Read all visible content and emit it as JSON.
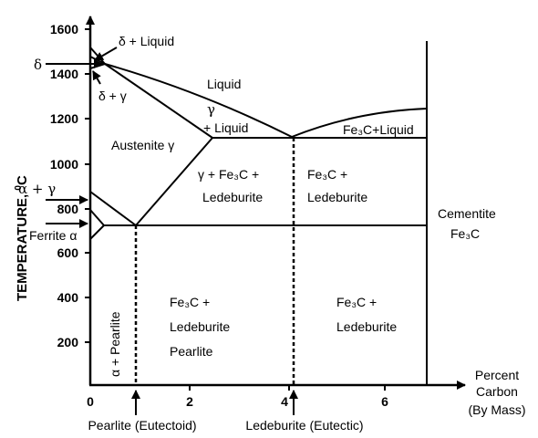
{
  "axes": {
    "y_label": "TEMPERATURE, ",
    "y_label_sup": "0",
    "y_label_unit": "C",
    "x_label_line1": "Percent",
    "x_label_line2": "Carbon",
    "x_label_line3": "(By Mass)",
    "y_ticks": [
      "1600",
      "1400",
      "1200",
      "1000",
      "800",
      "600",
      "400",
      "200"
    ],
    "x_ticks": [
      "0",
      "2",
      "4",
      "6"
    ]
  },
  "bottom_labels": {
    "pearlite": "Pearlite (Eutectoid)",
    "ledeburite": "Ledeburite (Eutectic)"
  },
  "regions": {
    "delta": "δ",
    "delta_liquid": "δ + Liquid",
    "delta_gamma": "δ + γ",
    "liquid": "Liquid",
    "gamma": "γ",
    "gamma_liquid": "+ Liquid",
    "fe3c_liquid": "Fe₃C+Liquid",
    "austenite": "Austenite γ",
    "gamma_fe3c": "γ + Fe₃C +",
    "ledeburite_a": "Ledeburite",
    "fe3c_plus_a": "Fe₃C +",
    "ledeburite_b": "Ledeburite",
    "cementite": "Cementite",
    "cementite_formula": "Fe₃C",
    "alpha_gamma": "α + γ",
    "ferrite": "Ferrite α",
    "alpha_pearlite": "α + Pearlite",
    "fe3c_plus_c": "Fe₃C +",
    "ledeburite_c": "Ledeburite",
    "pearlite": "Pearlite",
    "fe3c_plus_d": "Fe₃C +",
    "ledeburite_d": "Ledeburite"
  }
}
